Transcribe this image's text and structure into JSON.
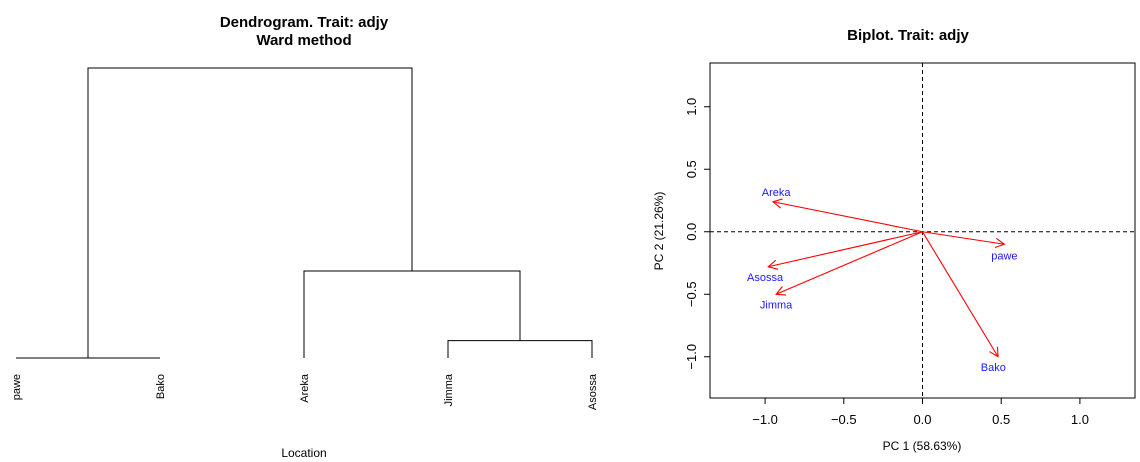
{
  "chart_data": [
    {
      "type": "dendrogram",
      "title": "Dendrogram. Trait: adjy",
      "subtitle": "Ward method",
      "xlabel": "Location",
      "leaves": [
        "pawe",
        "Bako",
        "Areka",
        "Jimma",
        "Asossa"
      ],
      "merges": [
        {
          "left": "leaf:3",
          "right": "leaf:4",
          "height": 0.06
        },
        {
          "left": "leaf:0",
          "right": "leaf:1",
          "height": 0.0
        },
        {
          "left": "leaf:2",
          "right": "merge:0",
          "height": 0.3
        },
        {
          "left": "merge:1",
          "right": "merge:2",
          "height": 1.0
        }
      ],
      "ylim": [
        0,
        1.08
      ],
      "line_color": "#000000"
    },
    {
      "type": "scatter",
      "title": "Biplot. Trait: adjy",
      "xlabel": "PC 1 (58.63%)",
      "ylabel": "PC 2 (21.26%)",
      "xlim": [
        -1.35,
        1.35
      ],
      "ylim": [
        -1.33,
        1.35
      ],
      "xticks": [
        -1.0,
        -0.5,
        0.0,
        0.5,
        1.0
      ],
      "yticks": [
        -1.0,
        -0.5,
        0.0,
        0.5,
        1.0
      ],
      "xtick_labels": [
        "−1.0",
        "−0.5",
        "0.0",
        "0.5",
        "1.0"
      ],
      "ytick_labels": [
        "−1.0",
        "−0.5",
        "0.0",
        "0.5",
        "1.0"
      ],
      "arrows": [
        {
          "name": "Areka",
          "x": -0.95,
          "y": 0.24,
          "label_x": -0.93,
          "label_y": 0.32
        },
        {
          "name": "Asossa",
          "x": -0.98,
          "y": -0.28,
          "label_x": -1.0,
          "label_y": -0.36
        },
        {
          "name": "Jimma",
          "x": -0.93,
          "y": -0.5,
          "label_x": -0.93,
          "label_y": -0.58
        },
        {
          "name": "pawe",
          "x": 0.52,
          "y": -0.1,
          "label_x": 0.52,
          "label_y": -0.19
        },
        {
          "name": "Bako",
          "x": 0.48,
          "y": -1.0,
          "label_x": 0.45,
          "label_y": -1.08
        }
      ],
      "arrow_color": "#ff0000",
      "label_color": "#1a1aff",
      "reference_lines": {
        "x": 0,
        "y": 0,
        "style": "dashed"
      }
    }
  ]
}
